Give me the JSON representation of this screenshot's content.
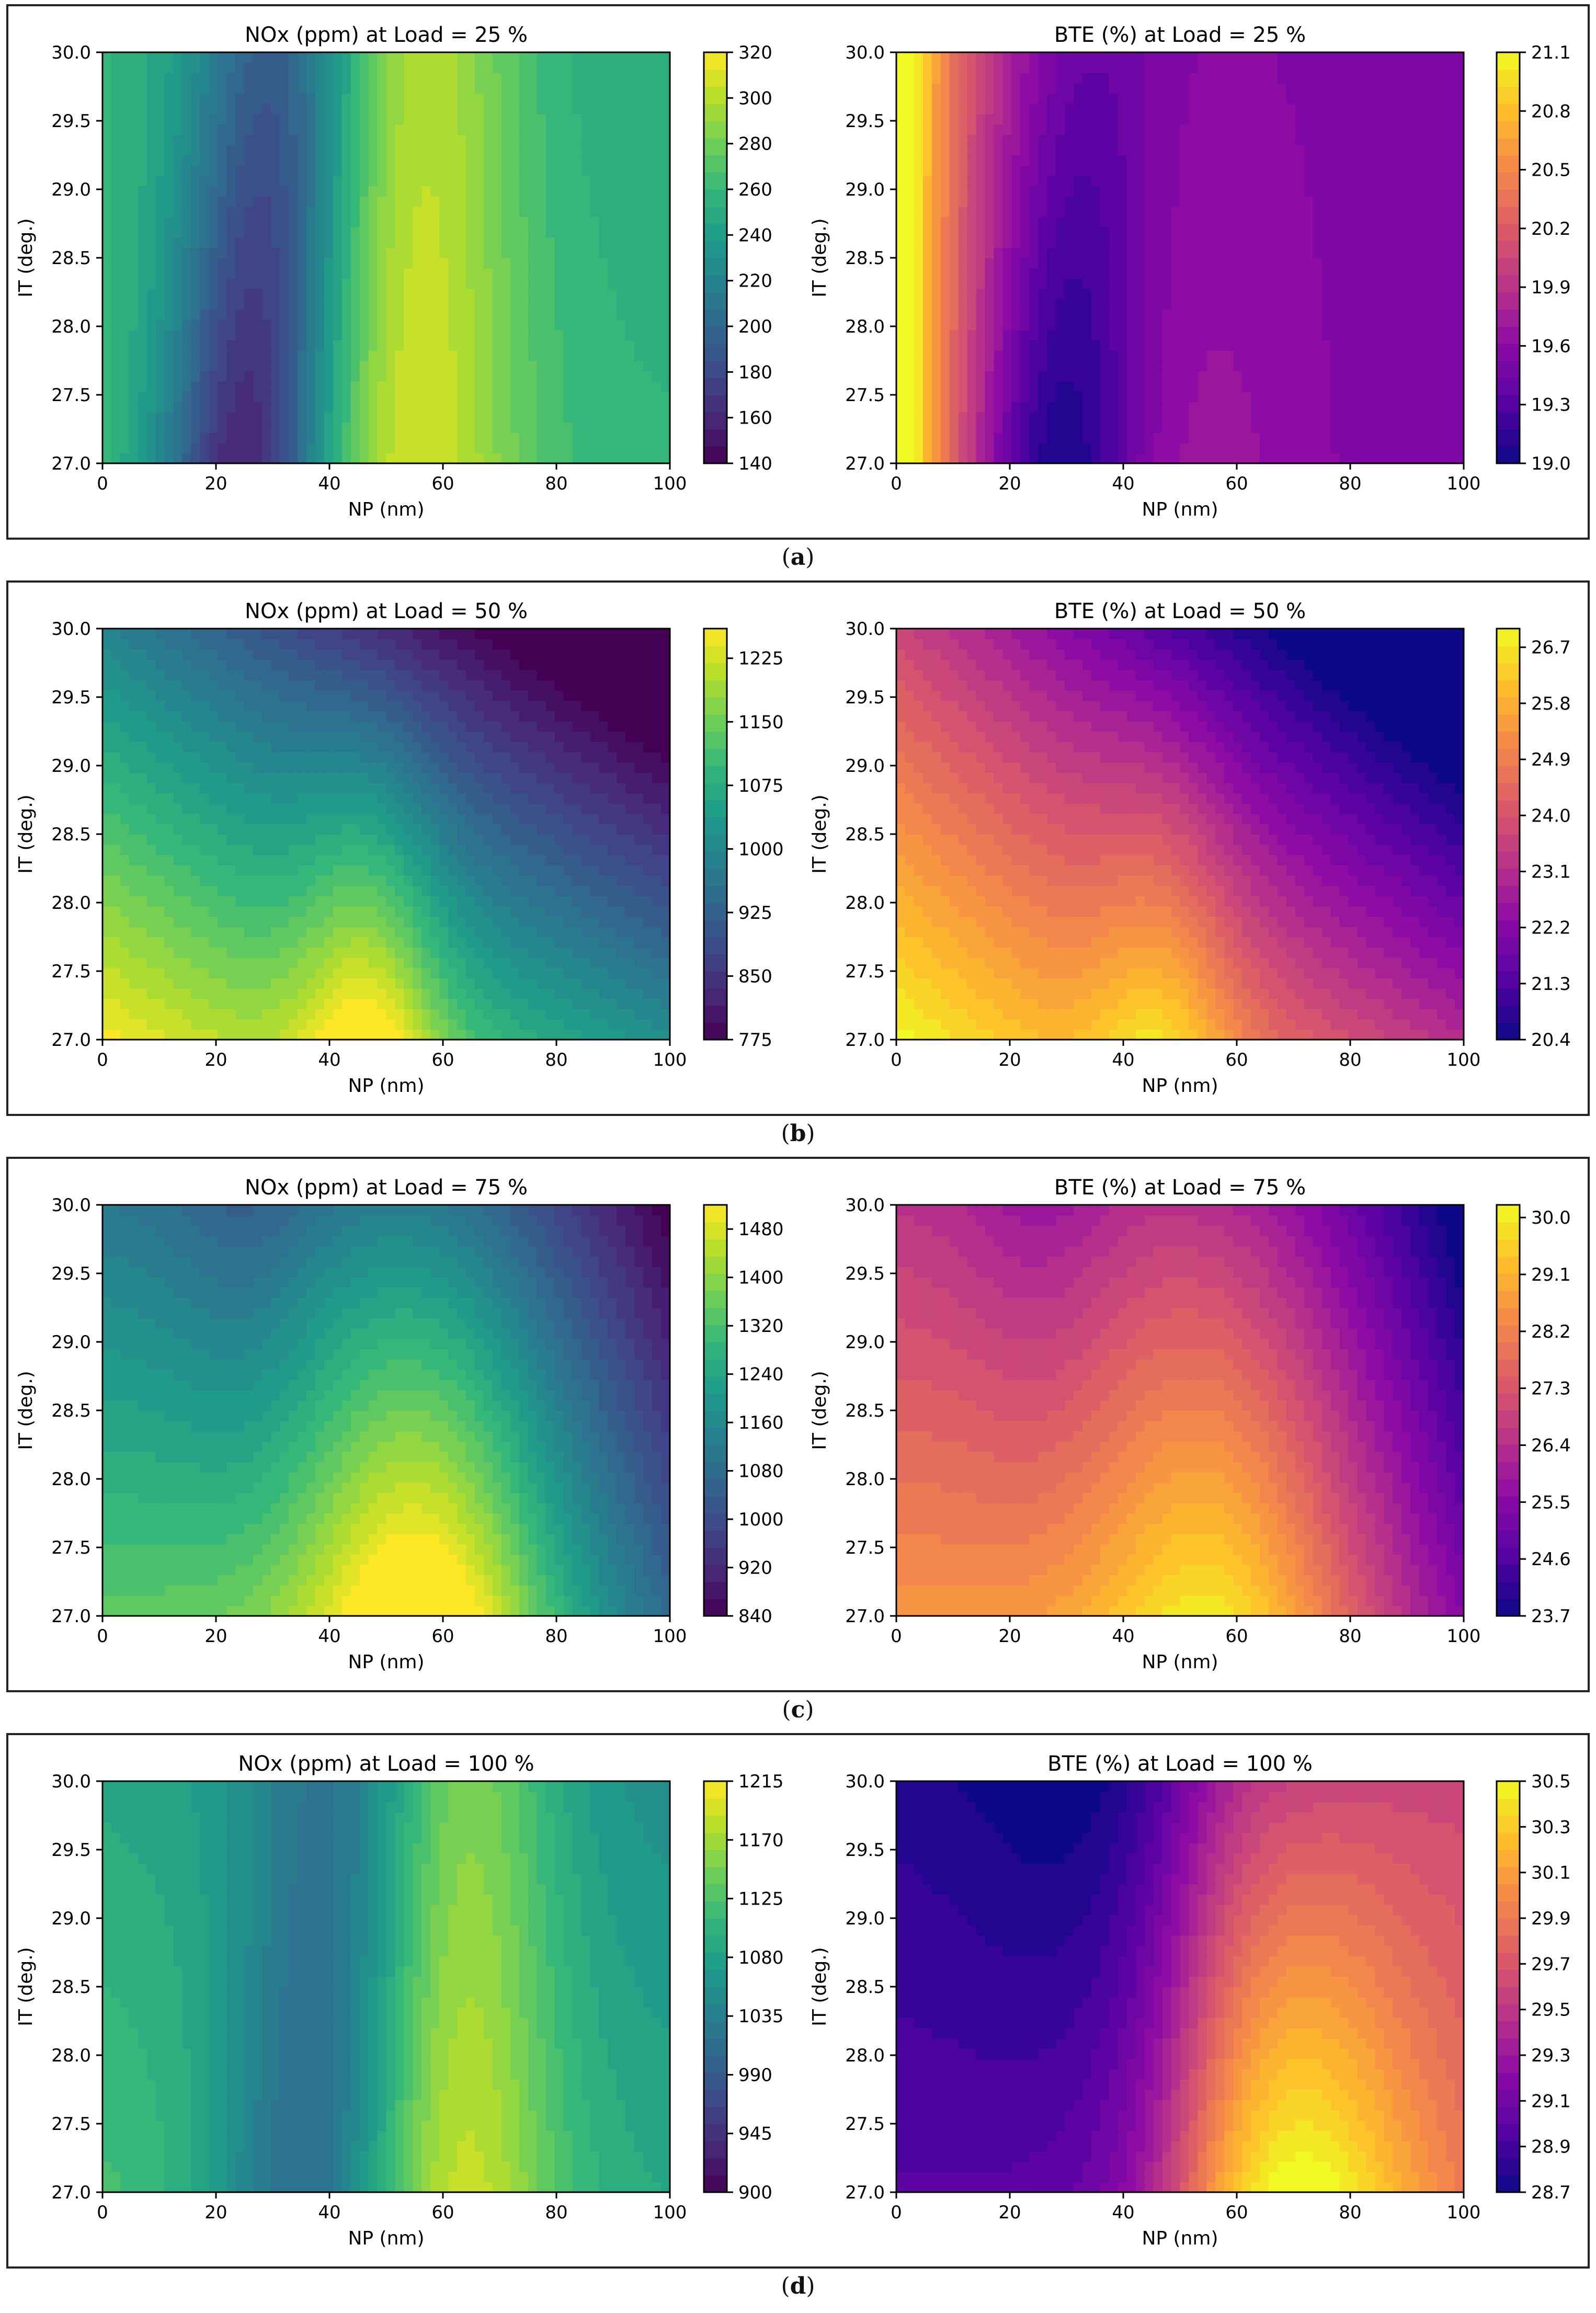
{
  "figure": {
    "panels": [
      {
        "label": "a"
      },
      {
        "label": "b"
      },
      {
        "label": "c"
      },
      {
        "label": "d"
      }
    ]
  },
  "colors": {
    "frame": "#222222",
    "text": "#111111"
  },
  "chart_data": [
    {
      "type": "heatmap",
      "panel": "a",
      "title": "NOx (ppm) at Load = 25 %",
      "xlabel": "NP (nm)",
      "ylabel": "IT (deg.)",
      "xlim": [
        0,
        100
      ],
      "ylim": [
        27.0,
        30.0
      ],
      "xticks": [
        0,
        20,
        40,
        60,
        80,
        100
      ],
      "yticks": [
        27.0,
        27.5,
        28.0,
        28.5,
        29.0,
        29.5,
        30.0
      ],
      "colormap": "viridis",
      "colorbar": {
        "min": 140,
        "max": 320,
        "ticks": [
          140,
          160,
          180,
          200,
          220,
          240,
          260,
          280,
          300,
          320
        ]
      },
      "field": {
        "mode": "valley_ridge",
        "a_center": 25,
        "a_width": 11,
        "a_depth": 1.0,
        "a_ridge_center": 55,
        "a_ridge_width": 13,
        "a_ridge_amp": 0.55,
        "slope_y": 0.15,
        "tilt": 0.12
      }
    },
    {
      "type": "heatmap",
      "panel": "a",
      "title": "BTE (%) at Load = 25 %",
      "xlabel": "NP (nm)",
      "ylabel": "IT (deg.)",
      "xlim": [
        0,
        100
      ],
      "ylim": [
        27.0,
        30.0
      ],
      "xticks": [
        0,
        20,
        40,
        60,
        80,
        100
      ],
      "yticks": [
        27.0,
        27.5,
        28.0,
        28.5,
        29.0,
        29.5,
        30.0
      ],
      "colormap": "plasma",
      "colorbar": {
        "min": 19.0,
        "max": 21.1,
        "ticks": [
          19.0,
          19.3,
          19.6,
          19.9,
          20.2,
          20.5,
          20.8,
          21.1
        ]
      },
      "field": {
        "mode": "left_high_valley",
        "a_center": 28,
        "a_width": 10,
        "a_depth": 0.75,
        "a_ridge_center": 55,
        "a_ridge_width": 14,
        "a_ridge_amp": 0.2,
        "slope_y": 0.25,
        "tilt": 0.0
      }
    },
    {
      "type": "heatmap",
      "panel": "b",
      "title": "NOx (ppm) at Load = 50 %",
      "xlabel": "NP (nm)",
      "ylabel": "IT (deg.)",
      "xlim": [
        0,
        100
      ],
      "ylim": [
        27.0,
        30.0
      ],
      "xticks": [
        0,
        20,
        40,
        60,
        80,
        100
      ],
      "yticks": [
        27.0,
        27.5,
        28.0,
        28.5,
        29.0,
        29.5,
        30.0
      ],
      "colormap": "viridis",
      "colorbar": {
        "min": 775,
        "max": 1260,
        "ticks": [
          775,
          850,
          925,
          1000,
          1075,
          1150,
          1225
        ]
      },
      "field": {
        "mode": "corner_ridge",
        "a_center": 47,
        "a_width": 9,
        "a_depth": 0.0,
        "a_ridge_center": 47,
        "a_ridge_width": 9,
        "a_ridge_amp": 0.35,
        "slope_y": 0.55,
        "tilt": 0.6
      }
    },
    {
      "type": "heatmap",
      "panel": "b",
      "title": "BTE (%) at Load = 50 %",
      "xlabel": "NP (nm)",
      "ylabel": "IT (deg.)",
      "xlim": [
        0,
        100
      ],
      "ylim": [
        27.0,
        30.0
      ],
      "xticks": [
        0,
        20,
        40,
        60,
        80,
        100
      ],
      "yticks": [
        27.0,
        27.5,
        28.0,
        28.5,
        29.0,
        29.5,
        30.0
      ],
      "colormap": "plasma",
      "colorbar": {
        "min": 20.4,
        "max": 27.0,
        "ticks": [
          20.4,
          21.3,
          22.2,
          23.1,
          24.0,
          24.9,
          25.8,
          26.7
        ]
      },
      "field": {
        "mode": "corner_ridge",
        "a_center": 47,
        "a_width": 9,
        "a_depth": 0.0,
        "a_ridge_center": 47,
        "a_ridge_width": 9,
        "a_ridge_amp": 0.25,
        "slope_y": 0.5,
        "tilt": 0.7
      }
    },
    {
      "type": "heatmap",
      "panel": "c",
      "title": "NOx (ppm) at Load = 75 %",
      "xlabel": "NP (nm)",
      "ylabel": "IT (deg.)",
      "xlim": [
        0,
        100
      ],
      "ylim": [
        27.0,
        30.0
      ],
      "xticks": [
        0,
        20,
        40,
        60,
        80,
        100
      ],
      "yticks": [
        27.0,
        27.5,
        28.0,
        28.5,
        29.0,
        29.5,
        30.0
      ],
      "colormap": "viridis",
      "colorbar": {
        "min": 840,
        "max": 1520,
        "ticks": [
          840,
          920,
          1000,
          1080,
          1160,
          1240,
          1320,
          1400,
          1480
        ]
      },
      "field": {
        "mode": "bump",
        "a_center": 57,
        "a_width": 15,
        "a_depth": 0.0,
        "a_ridge_center": 57,
        "a_ridge_width": 15,
        "a_ridge_amp": 0.45,
        "slope_y": 0.5,
        "tilt": 0.3
      }
    },
    {
      "type": "heatmap",
      "panel": "c",
      "title": "BTE (%) at Load = 75 %",
      "xlabel": "NP (nm)",
      "ylabel": "IT (deg.)",
      "xlim": [
        0,
        100
      ],
      "ylim": [
        27.0,
        30.0
      ],
      "xticks": [
        0,
        20,
        40,
        60,
        80,
        100
      ],
      "yticks": [
        27.0,
        27.5,
        28.0,
        28.5,
        29.0,
        29.5,
        30.0
      ],
      "colormap": "plasma",
      "colorbar": {
        "min": 23.7,
        "max": 30.2,
        "ticks": [
          23.7,
          24.6,
          25.5,
          26.4,
          27.3,
          28.2,
          29.1,
          30.0
        ]
      },
      "field": {
        "mode": "bump",
        "a_center": 57,
        "a_width": 15,
        "a_depth": 0.0,
        "a_ridge_center": 57,
        "a_ridge_width": 15,
        "a_ridge_amp": 0.3,
        "slope_y": 0.45,
        "tilt": 0.35
      }
    },
    {
      "type": "heatmap",
      "panel": "d",
      "title": "NOx (ppm) at Load = 100 %",
      "xlabel": "NP (nm)",
      "ylabel": "IT (deg.)",
      "xlim": [
        0,
        100
      ],
      "ylim": [
        27.0,
        30.0
      ],
      "xticks": [
        0,
        20,
        40,
        60,
        80,
        100
      ],
      "yticks": [
        27.0,
        27.5,
        28.0,
        28.5,
        29.0,
        29.5,
        30.0
      ],
      "colormap": "viridis",
      "colorbar": {
        "min": 900,
        "max": 1215,
        "ticks": [
          900,
          945,
          990,
          1035,
          1080,
          1125,
          1170,
          1215
        ]
      },
      "field": {
        "mode": "valley_ridge",
        "a_center": 36,
        "a_width": 12,
        "a_depth": 0.55,
        "a_ridge_center": 63,
        "a_ridge_width": 12,
        "a_ridge_amp": 0.6,
        "slope_y": 0.35,
        "tilt": 0.25
      }
    },
    {
      "type": "heatmap",
      "panel": "d",
      "title": "BTE (%) at Load = 100 %",
      "xlabel": "NP (nm)",
      "ylabel": "IT (deg.)",
      "xlim": [
        0,
        100
      ],
      "ylim": [
        27.0,
        30.0
      ],
      "xticks": [
        0,
        20,
        40,
        60,
        80,
        100
      ],
      "yticks": [
        27.0,
        27.5,
        28.0,
        28.5,
        29.0,
        29.5,
        30.0
      ],
      "colormap": "plasma",
      "colorbar": {
        "min": 28.7,
        "max": 30.5,
        "ticks": [
          28.7,
          28.9,
          29.1,
          29.3,
          29.5,
          29.7,
          29.9,
          30.1,
          30.3,
          30.5
        ]
      },
      "field": {
        "mode": "sigmoid_bump",
        "a_center": 30,
        "a_width": 14,
        "a_depth": 0.25,
        "a_ridge_center": 70,
        "a_ridge_width": 16,
        "a_ridge_amp": 0.45,
        "slope_y": 0.3,
        "tilt": 0.0
      }
    }
  ]
}
